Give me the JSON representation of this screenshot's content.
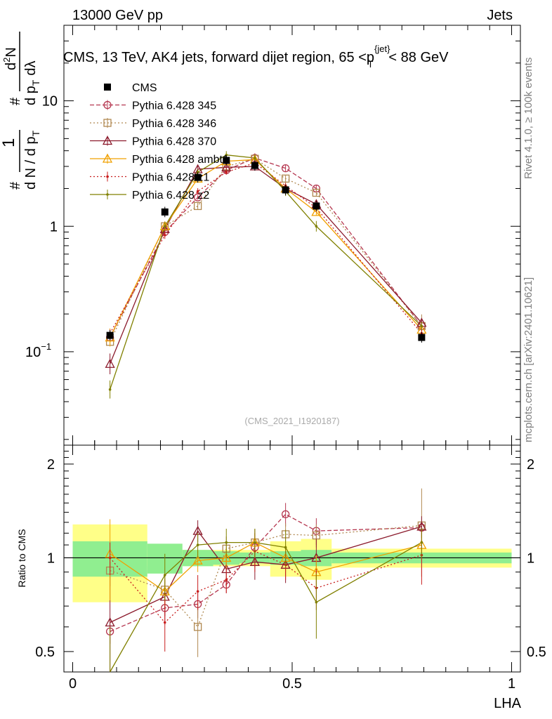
{
  "header": {
    "left": "13000 GeV pp",
    "right": "Jets"
  },
  "title": {
    "main": "CMS, 13 TeV, AK4 jets, forward dijet region, 65 <",
    "p": "p",
    "sub": "T",
    "sup": "{jet}",
    "tail": "< 88 GeV"
  },
  "ylabel": {
    "hash1": "#",
    "one": "1",
    "dn": "d N / d p",
    "t": "T",
    "hash2": "#",
    "dN": "d",
    "sup2": "2",
    "N": "N",
    "dp": "d p",
    "t2": "T",
    "dl": "dλ"
  },
  "watermark": "(CMS_2021_I1920187)",
  "side": {
    "rivet": "Rivet 4.1.0, ≥ 100k events",
    "mcplots": "mcplots.cern.ch [arXiv:2401.10621]"
  },
  "ratio_ylabel": "Ratio to CMS",
  "xlabel": "LHA",
  "chart_data": {
    "type": "line",
    "xlabel": "LHA",
    "ylog": true,
    "ylim": [
      0.018,
      40
    ],
    "xlim": [
      -0.02,
      1.02
    ],
    "ratio_ylim": [
      0.43,
      2.3
    ],
    "upper_yticks": [
      {
        "v": 0.1,
        "base": "10",
        "exp": "−1"
      },
      {
        "v": 1,
        "label": "1"
      },
      {
        "v": 10,
        "label": "10"
      }
    ],
    "ratio_yticks": [
      {
        "v": 0.5,
        "label": "0.5"
      },
      {
        "v": 1,
        "label": "1"
      },
      {
        "v": 2,
        "label": "2"
      }
    ],
    "xticks": [
      {
        "v": 0,
        "label": "0"
      },
      {
        "v": 0.5,
        "label": "0.5"
      },
      {
        "v": 1,
        "label": "1"
      }
    ],
    "bin_edges": [
      0,
      0.17,
      0.25,
      0.32,
      0.38,
      0.45,
      0.52,
      0.59,
      1.0
    ],
    "x": [
      0.085,
      0.21,
      0.285,
      0.35,
      0.415,
      0.485,
      0.555,
      0.795
    ],
    "cms": {
      "name": "CMS",
      "values": [
        0.135,
        1.3,
        2.45,
        3.35,
        3.05,
        1.95,
        1.45,
        0.13
      ],
      "band_stat": [
        0.13,
        0.11,
        0.06,
        0.05,
        0.04,
        0.05,
        0.06,
        0.04
      ],
      "band_tot": [
        0.28,
        0.06,
        0.06,
        0.06,
        0.06,
        0.13,
        0.15,
        0.07
      ]
    },
    "series": [
      {
        "name": "Pythia 6.428 345",
        "color": "#b5364f",
        "marker": "circle",
        "dash": "6,3",
        "values": [
          0.13,
          0.9,
          1.7,
          2.8,
          3.5,
          2.9,
          2.0,
          0.16
        ],
        "ratio": [
          0.58,
          0.69,
          0.71,
          0.82,
          1.08,
          1.38,
          1.22,
          1.25
        ],
        "ratio_err": [
          0.05,
          0.08,
          0.07,
          0.05,
          0.15,
          0.12,
          0.12,
          0.05
        ]
      },
      {
        "name": "Pythia 6.428 346",
        "color": "#b08850",
        "marker": "square",
        "dash": "2,3",
        "values": [
          0.12,
          1.0,
          1.45,
          3.0,
          3.45,
          2.4,
          1.85,
          0.16
        ],
        "ratio": [
          0.91,
          0.79,
          0.6,
          1.07,
          1.12,
          1.19,
          1.18,
          1.27
        ],
        "ratio_err": [
          0.1,
          0.1,
          0.12,
          0.1,
          0.12,
          0.1,
          0.1,
          0.4
        ]
      },
      {
        "name": "Pythia 6.428 370",
        "color": "#8b1a2c",
        "marker": "triangle",
        "dash": "",
        "values": [
          0.08,
          0.95,
          2.85,
          2.95,
          3.0,
          2.0,
          1.5,
          0.17
        ],
        "ratio": [
          0.62,
          0.75,
          1.22,
          0.92,
          0.97,
          0.95,
          1.0,
          1.26
        ],
        "ratio_err": [
          0.35,
          0.1,
          0.1,
          0.1,
          0.12,
          0.12,
          0.15,
          0.1
        ]
      },
      {
        "name": "Pythia 6.428 ambt1",
        "color": "#f0a000",
        "marker": "triangle",
        "dash": "",
        "values": [
          0.13,
          1.0,
          2.4,
          3.3,
          3.4,
          2.0,
          1.3,
          0.15
        ],
        "ratio": [
          1.03,
          0.78,
          0.98,
          1.0,
          1.12,
          1.0,
          0.9,
          1.1
        ],
        "ratio_err": [
          0.3,
          0.08,
          0.08,
          0.08,
          0.08,
          0.1,
          0.12,
          0.08
        ]
      },
      {
        "name": "Pythia 6.428 z1",
        "color": "#c81e1e",
        "marker": "dot",
        "dash": "2,3",
        "values": [
          0.14,
          0.85,
          1.9,
          2.7,
          3.2,
          2.1,
          1.4,
          0.14
        ],
        "ratio": [
          1.0,
          0.62,
          0.78,
          0.85,
          1.05,
          0.95,
          0.8,
          1.02
        ],
        "ratio_err": [
          0.12,
          0.12,
          0.1,
          0.08,
          0.15,
          0.1,
          0.12,
          0.2
        ]
      },
      {
        "name": "Pythia 6.428 z2",
        "color": "#808000",
        "marker": "dot",
        "dash": "",
        "values": [
          0.05,
          1.0,
          2.7,
          3.7,
          3.5,
          1.9,
          1.0,
          0.16
        ],
        "ratio": [
          0.3,
          0.88,
          1.1,
          1.12,
          1.12,
          1.08,
          0.72,
          1.12
        ],
        "ratio_err": [
          0.3,
          0.15,
          0.1,
          0.12,
          0.12,
          0.15,
          0.17,
          0.12
        ]
      }
    ]
  }
}
